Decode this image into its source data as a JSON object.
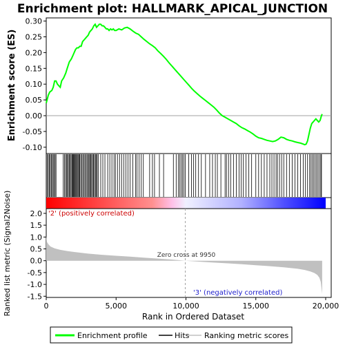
{
  "chart_data": {
    "type": "line",
    "title": "Enrichment plot: HALLMARK_APICAL_JUNCTION",
    "top_panel": {
      "ylabel": "Enrichment score (ES)",
      "ylim": [
        -0.12,
        0.31
      ],
      "yticks": [
        -0.1,
        -0.05,
        0.0,
        0.05,
        0.1,
        0.15,
        0.2,
        0.25,
        0.3
      ],
      "ytick_labels": [
        "-0.10",
        "-0.05",
        "0.00",
        "0.05",
        "0.10",
        "0.15",
        "0.20",
        "0.25",
        "0.30"
      ],
      "series": [
        {
          "name": "Enrichment profile",
          "color": "#00ff00",
          "x": [
            0,
            60,
            150,
            250,
            400,
            500,
            600,
            700,
            800,
            900,
            1000,
            1100,
            1250,
            1400,
            1500,
            1650,
            1800,
            1900,
            2000,
            2100,
            2200,
            2300,
            2400,
            2500,
            2600,
            2700,
            2800,
            2900,
            3000,
            3100,
            3200,
            3300,
            3400,
            3500,
            3600,
            3700,
            3800,
            3900,
            4000,
            4100,
            4200,
            4300,
            4400,
            4500,
            4600,
            4700,
            4800,
            4900,
            5000,
            5200,
            5400,
            5600,
            5800,
            6000,
            6200,
            6400,
            6600,
            6800,
            7000,
            7200,
            7400,
            7600,
            7800,
            8000,
            8200,
            8400,
            8600,
            8800,
            9000,
            9200,
            9400,
            9600,
            9800,
            10000,
            10200,
            10400,
            10600,
            10800,
            11000,
            11200,
            11400,
            11600,
            11800,
            12000,
            12200,
            12400,
            12600,
            12800,
            13000,
            13200,
            13400,
            13600,
            13800,
            14000,
            14200,
            14400,
            14600,
            14800,
            15000,
            15200,
            15400,
            15600,
            15800,
            16000,
            16200,
            16400,
            16600,
            16800,
            17000,
            17200,
            17400,
            17600,
            17800,
            18000,
            18200,
            18400,
            18500,
            18600,
            18700,
            18800,
            18900,
            19000,
            19100,
            19200,
            19300,
            19400,
            19500,
            19600,
            19700,
            19750
          ],
          "y": [
            0.04,
            0.05,
            0.065,
            0.075,
            0.08,
            0.09,
            0.11,
            0.11,
            0.1,
            0.095,
            0.09,
            0.11,
            0.12,
            0.135,
            0.15,
            0.17,
            0.18,
            0.19,
            0.2,
            0.21,
            0.215,
            0.215,
            0.22,
            0.22,
            0.235,
            0.24,
            0.245,
            0.25,
            0.255,
            0.265,
            0.27,
            0.275,
            0.285,
            0.29,
            0.28,
            0.285,
            0.29,
            0.29,
            0.285,
            0.285,
            0.28,
            0.275,
            0.275,
            0.27,
            0.275,
            0.272,
            0.275,
            0.27,
            0.27,
            0.275,
            0.272,
            0.278,
            0.28,
            0.275,
            0.268,
            0.262,
            0.258,
            0.25,
            0.242,
            0.235,
            0.228,
            0.222,
            0.215,
            0.205,
            0.197,
            0.188,
            0.178,
            0.167,
            0.157,
            0.147,
            0.137,
            0.127,
            0.117,
            0.107,
            0.097,
            0.087,
            0.078,
            0.07,
            0.062,
            0.055,
            0.048,
            0.041,
            0.034,
            0.027,
            0.018,
            0.008,
            0.0,
            -0.005,
            -0.01,
            -0.015,
            -0.02,
            -0.025,
            -0.032,
            -0.038,
            -0.042,
            -0.047,
            -0.052,
            -0.058,
            -0.065,
            -0.07,
            -0.072,
            -0.075,
            -0.078,
            -0.08,
            -0.082,
            -0.08,
            -0.075,
            -0.068,
            -0.07,
            -0.075,
            -0.078,
            -0.08,
            -0.083,
            -0.085,
            -0.087,
            -0.09,
            -0.092,
            -0.09,
            -0.08,
            -0.06,
            -0.04,
            -0.025,
            -0.02,
            -0.015,
            -0.01,
            -0.015,
            -0.02,
            -0.015,
            0.0,
            0.005
          ]
        }
      ],
      "zero_line_color": "#a0a0a0"
    },
    "hits_panel": {
      "series_name": "Hits",
      "hit_positions": [
        70,
        150,
        220,
        290,
        360,
        430,
        500,
        560,
        640,
        700,
        1220,
        1300,
        1380,
        1450,
        1520,
        1580,
        1650,
        1720,
        1780,
        1850,
        1900,
        1950,
        2000,
        2060,
        2110,
        2170,
        2220,
        2280,
        2340,
        2400,
        2470,
        2550,
        2620,
        2700,
        2770,
        2850,
        2920,
        3000,
        3060,
        3120,
        3180,
        3250,
        3320,
        3380,
        3450,
        3520,
        3580,
        3650,
        3720,
        3900,
        4050,
        4200,
        4400,
        4550,
        4700,
        4850,
        4950,
        5100,
        5250,
        5400,
        5550,
        5700,
        5850,
        6000,
        6200,
        6400,
        6500,
        6650,
        6800,
        6950,
        7400,
        7600,
        7750,
        8100,
        8400,
        9100,
        9300,
        9450,
        9550,
        9650,
        9750,
        9850,
        9950,
        10200,
        10400,
        10550,
        10700,
        10900,
        11100,
        11400,
        11700,
        11900,
        12100,
        12250,
        12500,
        12800,
        12900,
        13050,
        13200,
        13400,
        13600,
        13800,
        13950,
        14100,
        14300,
        14500,
        14700,
        15000,
        15200,
        15400,
        15600,
        15800,
        16000,
        16150,
        16300,
        16450,
        16550,
        16700,
        16850,
        17000,
        17200,
        17400,
        17600,
        17800,
        18000,
        18200,
        18400,
        18550,
        18700,
        18850,
        18950,
        19050,
        19150,
        19250,
        19350,
        19450,
        19550,
        19650,
        19700
      ]
    },
    "ranking_bar": {
      "positive_label": "'2' (positively correlated)",
      "negative_label": "'3' (negatively correlated)",
      "positive_color": "#ff0000",
      "negative_color": "#0000ff"
    },
    "bottom_panel": {
      "ylabel": "Ranked list metric (Signal2Noise)",
      "xlabel": "Rank in Ordered Dataset",
      "ylim": [
        -1.55,
        2.2
      ],
      "yticks": [
        -1.5,
        -1.0,
        -0.5,
        0.0,
        0.5,
        1.0,
        1.5,
        2.0
      ],
      "ytick_labels": [
        "-1.5",
        "-1.0",
        "-0.5",
        "0.0",
        "0.5",
        "1.0",
        "1.5",
        "2.0"
      ],
      "fill_color": "#c0c0c0",
      "series_name": "Ranking metric scores",
      "x": [
        0,
        50,
        150,
        300,
        600,
        1000,
        1500,
        2000,
        3000,
        4000,
        5000,
        6000,
        7000,
        8000,
        9000,
        9950,
        11000,
        12000,
        13000,
        14000,
        15000,
        16000,
        17000,
        18000,
        18500,
        18900,
        19200,
        19400,
        19550,
        19650,
        19700,
        19750
      ],
      "y": [
        1.05,
        0.8,
        0.7,
        0.6,
        0.52,
        0.46,
        0.41,
        0.37,
        0.3,
        0.25,
        0.21,
        0.17,
        0.13,
        0.09,
        0.05,
        0.0,
        -0.04,
        -0.08,
        -0.11,
        -0.15,
        -0.19,
        -0.23,
        -0.28,
        -0.34,
        -0.39,
        -0.45,
        -0.52,
        -0.6,
        -0.72,
        -0.9,
        -1.15,
        -1.4
      ],
      "zero_cross_label": "Zero cross at 9950",
      "zero_cross": 9950
    },
    "xlim": [
      0,
      20000
    ],
    "xticks": [
      0,
      5000,
      10000,
      15000,
      20000
    ],
    "xtick_labels": [
      "0",
      "5,000",
      "10,000",
      "15,000",
      "20,000"
    ],
    "legend": {
      "placement": "bottom",
      "entries": [
        "Enrichment profile",
        "Hits",
        "Ranking metric scores"
      ]
    }
  }
}
